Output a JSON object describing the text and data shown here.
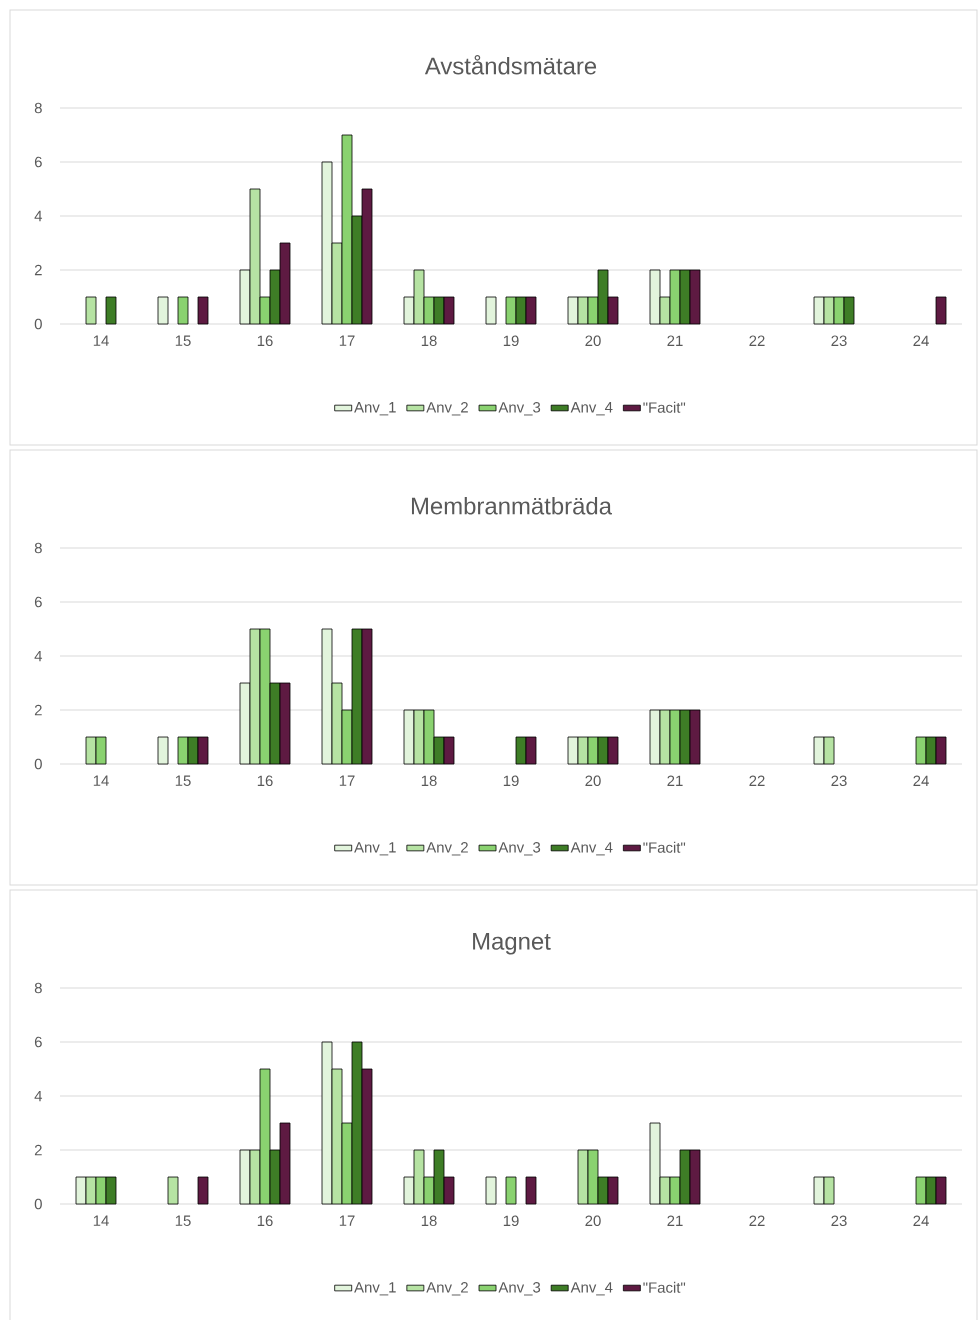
{
  "chart_data": [
    {
      "type": "bar",
      "title": "Avståndsmätare",
      "categories": [
        "14",
        "15",
        "16",
        "17",
        "18",
        "19",
        "20",
        "21",
        "22",
        "23",
        "24"
      ],
      "ylim": [
        0,
        8
      ],
      "yticks": [
        0,
        2,
        4,
        6,
        8
      ],
      "grid": "y",
      "legend": "bottom",
      "series": [
        {
          "name": "Anv_1",
          "color": "#e2f4dc",
          "values": [
            0,
            1,
            2,
            6,
            1,
            1,
            1,
            2,
            0,
            1,
            0
          ]
        },
        {
          "name": "Anv_2",
          "color": "#b6e3a3",
          "values": [
            1,
            0,
            5,
            3,
            2,
            0,
            1,
            1,
            0,
            1,
            0
          ]
        },
        {
          "name": "Anv_3",
          "color": "#8ad270",
          "values": [
            0,
            1,
            1,
            7,
            1,
            1,
            1,
            2,
            0,
            1,
            0
          ]
        },
        {
          "name": "Anv_4",
          "color": "#3e7d26",
          "values": [
            1,
            0,
            2,
            4,
            1,
            1,
            2,
            2,
            0,
            1,
            0
          ]
        },
        {
          "name": "\"Facit\"",
          "color": "#5e1a42",
          "values": [
            0,
            1,
            3,
            5,
            1,
            1,
            1,
            2,
            0,
            0,
            1
          ]
        }
      ]
    },
    {
      "type": "bar",
      "title": "Membranmätbräda",
      "categories": [
        "14",
        "15",
        "16",
        "17",
        "18",
        "19",
        "20",
        "21",
        "22",
        "23",
        "24"
      ],
      "ylim": [
        0,
        8
      ],
      "yticks": [
        0,
        2,
        4,
        6,
        8
      ],
      "grid": "y",
      "legend": "bottom",
      "series": [
        {
          "name": "Anv_1",
          "color": "#e2f4dc",
          "values": [
            0,
            1,
            3,
            5,
            2,
            0,
            1,
            2,
            0,
            1,
            0
          ]
        },
        {
          "name": "Anv_2",
          "color": "#b6e3a3",
          "values": [
            1,
            0,
            5,
            3,
            2,
            0,
            1,
            2,
            0,
            1,
            0
          ]
        },
        {
          "name": "Anv_3",
          "color": "#8ad270",
          "values": [
            1,
            1,
            5,
            2,
            2,
            0,
            1,
            2,
            0,
            0,
            1
          ]
        },
        {
          "name": "Anv_4",
          "color": "#3e7d26",
          "values": [
            0,
            1,
            3,
            5,
            1,
            1,
            1,
            2,
            0,
            0,
            1
          ]
        },
        {
          "name": "\"Facit\"",
          "color": "#5e1a42",
          "values": [
            0,
            1,
            3,
            5,
            1,
            1,
            1,
            2,
            0,
            0,
            1
          ]
        }
      ]
    },
    {
      "type": "bar",
      "title": "Magnet",
      "categories": [
        "14",
        "15",
        "16",
        "17",
        "18",
        "19",
        "20",
        "21",
        "22",
        "23",
        "24"
      ],
      "ylim": [
        0,
        8
      ],
      "yticks": [
        0,
        2,
        4,
        6,
        8
      ],
      "grid": "y",
      "legend": "bottom",
      "series": [
        {
          "name": "Anv_1",
          "color": "#e2f4dc",
          "values": [
            1,
            0,
            2,
            6,
            1,
            1,
            0,
            3,
            0,
            1,
            0
          ]
        },
        {
          "name": "Anv_2",
          "color": "#b6e3a3",
          "values": [
            1,
            1,
            2,
            5,
            2,
            0,
            2,
            1,
            0,
            1,
            0
          ]
        },
        {
          "name": "Anv_3",
          "color": "#8ad270",
          "values": [
            1,
            0,
            5,
            3,
            1,
            1,
            2,
            1,
            0,
            0,
            1
          ]
        },
        {
          "name": "Anv_4",
          "color": "#3e7d26",
          "values": [
            1,
            0,
            2,
            6,
            2,
            0,
            1,
            2,
            0,
            0,
            1
          ]
        },
        {
          "name": "\"Facit\"",
          "color": "#5e1a42",
          "values": [
            0,
            1,
            3,
            5,
            1,
            1,
            1,
            2,
            0,
            0,
            1
          ]
        }
      ]
    }
  ]
}
